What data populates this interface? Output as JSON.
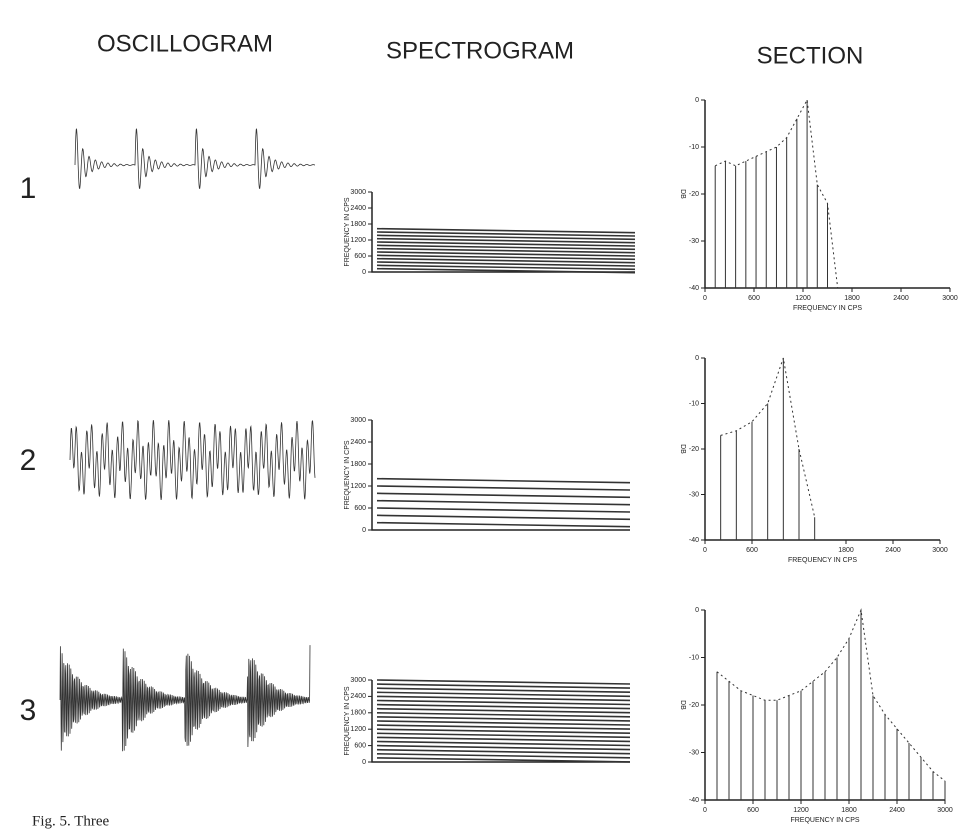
{
  "headers": [
    "OSCILLOGRAM",
    "SPECTROGRAM",
    "SECTION"
  ],
  "rows": [
    {
      "label": "1",
      "spectrogram": {
        "ylabel": "FREQUENCY IN CPS",
        "ylim": [
          0,
          3000
        ],
        "yticks": [
          0,
          600,
          1200,
          1800,
          2400,
          3000
        ]
      },
      "section": {
        "xlabel": "FREQUENCY IN CPS",
        "ylabel": "DB",
        "xlim": [
          0,
          3000
        ],
        "xticks": [
          0,
          600,
          1200,
          1800,
          2400,
          3000
        ],
        "ylim": [
          -40,
          0
        ],
        "yticks": [
          0,
          -10,
          -20,
          -30,
          -40
        ],
        "x": [
          125,
          250,
          375,
          500,
          625,
          750,
          875,
          1000,
          1125,
          1250,
          1375,
          1500,
          1625
        ],
        "values": [
          -14,
          -13,
          -14,
          -13,
          -12,
          -11,
          -10,
          -8,
          -4,
          0,
          -18,
          -22,
          -40
        ]
      }
    },
    {
      "label": "2",
      "spectrogram": {
        "ylabel": "FREQUENCY IN CPS",
        "ylim": [
          0,
          3000
        ],
        "yticks": [
          0,
          600,
          1200,
          1800,
          2400,
          3000
        ]
      },
      "section": {
        "xlabel": "FREQUENCY IN CPS",
        "ylabel": "DB",
        "xlim": [
          0,
          3000
        ],
        "xticks": [
          0,
          600,
          1800,
          2400,
          3000
        ],
        "ylim": [
          -40,
          0
        ],
        "yticks": [
          0,
          -10,
          -20,
          -30,
          -40
        ],
        "x": [
          200,
          400,
          600,
          800,
          1000,
          1200,
          1400
        ],
        "values": [
          -17,
          -16,
          -14,
          -10,
          0,
          -20,
          -35
        ]
      }
    },
    {
      "label": "3",
      "spectrogram": {
        "ylabel": "FREQUENCY IN CPS",
        "ylim": [
          0,
          3000
        ],
        "yticks": [
          0,
          600,
          1200,
          1800,
          2400,
          3000
        ]
      },
      "section": {
        "xlabel": "FREQUENCY IN CPS",
        "ylabel": "DB",
        "xlim": [
          0,
          3000
        ],
        "xticks": [
          0,
          600,
          1200,
          1800,
          2400,
          3000
        ],
        "ylim": [
          -40,
          0
        ],
        "yticks": [
          0,
          -10,
          -20,
          -30,
          -40
        ],
        "x": [
          150,
          300,
          450,
          600,
          750,
          900,
          1050,
          1200,
          1350,
          1500,
          1650,
          1800,
          1950,
          2100,
          2250,
          2400,
          2550,
          2700,
          2850,
          3000
        ],
        "values": [
          -13,
          -15,
          -17,
          -18,
          -19,
          -19,
          -18,
          -17,
          -15,
          -13,
          -10,
          -6,
          0,
          -18,
          -22,
          -25,
          -28,
          -31,
          -34,
          -36
        ]
      }
    }
  ],
  "caption": "Fig. 5. Three"
}
